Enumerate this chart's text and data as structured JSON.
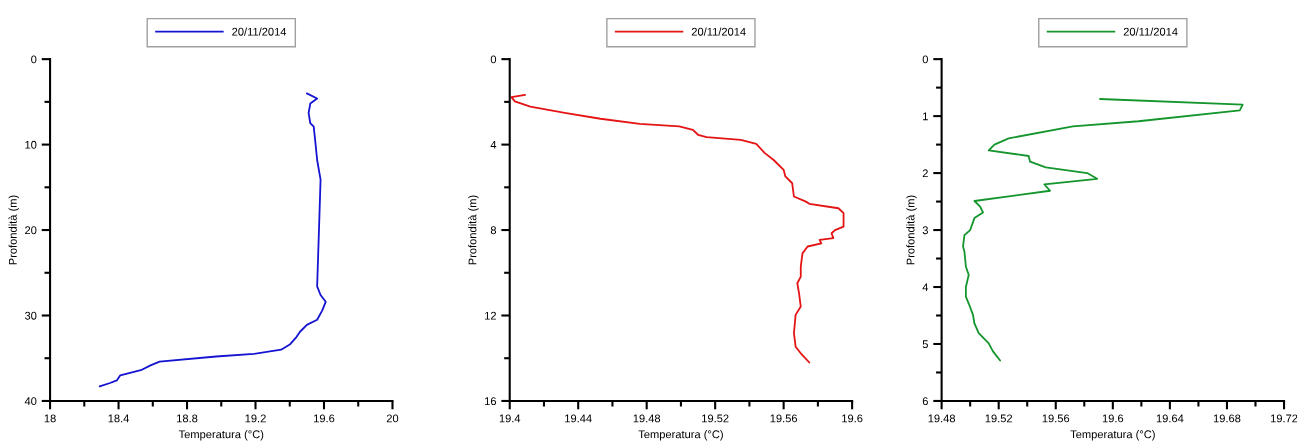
{
  "chart_data": [
    {
      "type": "line",
      "xlabel": "Temperatura (°C)",
      "ylabel": "Profondità (m)",
      "legend": "top",
      "xlim": [
        18,
        20
      ],
      "ylim": [
        40,
        0
      ],
      "xticks": [
        18,
        {
          "value": 18.2,
          "label": null
        },
        18.4,
        {
          "value": 18.6,
          "label": null
        },
        18.8,
        {
          "value": 19,
          "label": null
        },
        19.2,
        {
          "value": 19.4,
          "label": null
        },
        19.6,
        {
          "value": 19.8,
          "label": null
        },
        20
      ],
      "yticks": [
        0,
        {
          "value": 5,
          "label": null
        },
        10,
        {
          "value": 15,
          "label": null
        },
        20,
        {
          "value": 25,
          "label": null
        },
        30,
        {
          "value": 35,
          "label": null
        },
        40
      ],
      "series": [
        {
          "name": "20/11/2014",
          "color": "#1414d2",
          "x": [
            19.5,
            19.56,
            19.52,
            19.51,
            19.52,
            19.54,
            19.55,
            19.56,
            19.58,
            19.57,
            19.56,
            19.58,
            19.61,
            19.59,
            19.56,
            19.5,
            19.46,
            19.44,
            19.4,
            19.35,
            19.19,
            18.97,
            18.64,
            18.59,
            18.53,
            18.41,
            18.39,
            18.35,
            18.29
          ],
          "values": [
            4.0,
            4.6,
            5.2,
            6.3,
            7.5,
            7.9,
            9.8,
            11.8,
            14.1,
            20.4,
            26.6,
            27.6,
            28.4,
            29.4,
            30.5,
            31.1,
            31.9,
            32.5,
            33.4,
            34.0,
            34.5,
            34.8,
            35.4,
            35.8,
            36.4,
            37.0,
            37.6,
            37.9,
            38.3
          ]
        }
      ]
    },
    {
      "type": "line",
      "xlabel": "Temperatura (°C)",
      "ylabel": "Profondità (m)",
      "legend": "top",
      "xlim": [
        19.4,
        19.6
      ],
      "ylim": [
        16,
        0
      ],
      "xticks": [
        19.4,
        {
          "value": 19.42,
          "label": null
        },
        19.44,
        {
          "value": 19.46,
          "label": null
        },
        19.48,
        {
          "value": 19.5,
          "label": null
        },
        19.52,
        {
          "value": 19.54,
          "label": null
        },
        19.56,
        {
          "value": 19.58,
          "label": null
        },
        19.6
      ],
      "yticks": [
        0,
        {
          "value": 2,
          "label": null
        },
        4,
        {
          "value": 6,
          "label": null
        },
        8,
        {
          "value": 10,
          "label": null
        },
        12,
        {
          "value": 14,
          "label": null
        },
        16
      ],
      "series": [
        {
          "name": "20/11/2014",
          "color": "#e41414",
          "x": [
            19.409,
            19.401,
            19.403,
            19.412,
            19.433,
            19.453,
            19.476,
            19.499,
            19.507,
            19.51,
            19.515,
            19.535,
            19.544,
            19.549,
            19.554,
            19.56,
            19.561,
            19.565,
            19.566,
            19.573,
            19.575,
            19.592,
            19.595,
            19.595,
            19.59,
            19.588,
            19.589,
            19.581,
            19.582,
            19.574,
            19.571,
            19.57,
            19.57,
            19.568,
            19.569,
            19.57,
            19.567,
            19.566,
            19.567,
            19.57,
            19.575
          ],
          "values": [
            1.67,
            1.78,
            1.98,
            2.22,
            2.53,
            2.79,
            3.03,
            3.15,
            3.31,
            3.54,
            3.65,
            3.78,
            3.97,
            4.4,
            4.71,
            5.18,
            5.49,
            5.81,
            6.43,
            6.67,
            6.77,
            6.98,
            7.21,
            7.84,
            8.0,
            8.15,
            8.38,
            8.46,
            8.62,
            8.77,
            9.09,
            9.71,
            10.18,
            10.49,
            10.96,
            11.58,
            11.97,
            12.83,
            13.46,
            13.77,
            14.2
          ]
        }
      ]
    },
    {
      "type": "line",
      "xlabel": "Temperatura (°C)",
      "ylabel": "Profondità (m)",
      "legend": "top",
      "xlim": [
        19.48,
        19.72
      ],
      "ylim": [
        6,
        0
      ],
      "xticks": [
        19.48,
        {
          "value": 19.5,
          "label": null
        },
        19.52,
        {
          "value": 19.54,
          "label": null
        },
        19.56,
        {
          "value": 19.58,
          "label": null
        },
        19.6,
        {
          "value": 19.62,
          "label": null
        },
        19.64,
        {
          "value": 19.66,
          "label": null
        },
        19.68,
        {
          "value": 19.7,
          "label": null
        },
        19.72
      ],
      "yticks": [
        0,
        {
          "value": 0.5,
          "label": null
        },
        1,
        {
          "value": 1.5,
          "label": null
        },
        2,
        {
          "value": 2.5,
          "label": null
        },
        3,
        {
          "value": 3.5,
          "label": null
        },
        4,
        {
          "value": 4.5,
          "label": null
        },
        5,
        {
          "value": 5.5,
          "label": null
        },
        6
      ],
      "series": [
        {
          "name": "20/11/2014",
          "color": "#14962d",
          "x": [
            19.591,
            19.691,
            19.689,
            19.618,
            19.572,
            19.527,
            19.517,
            19.513,
            19.541,
            19.542,
            19.553,
            19.582,
            19.589,
            19.552,
            19.556,
            19.503,
            19.507,
            19.509,
            19.503,
            19.5,
            19.496,
            19.495,
            19.496,
            19.497,
            19.499,
            19.497,
            19.497,
            19.499,
            19.502,
            19.503,
            19.506,
            19.513,
            19.516,
            19.521
          ],
          "values": [
            0.7,
            0.8,
            0.9,
            1.09,
            1.18,
            1.39,
            1.5,
            1.6,
            1.7,
            1.8,
            1.9,
            2.0,
            2.1,
            2.2,
            2.31,
            2.49,
            2.59,
            2.69,
            2.79,
            3.0,
            3.09,
            3.29,
            3.38,
            3.64,
            3.79,
            4.0,
            4.17,
            4.29,
            4.49,
            4.64,
            4.81,
            4.99,
            5.13,
            5.29
          ]
        }
      ]
    }
  ]
}
